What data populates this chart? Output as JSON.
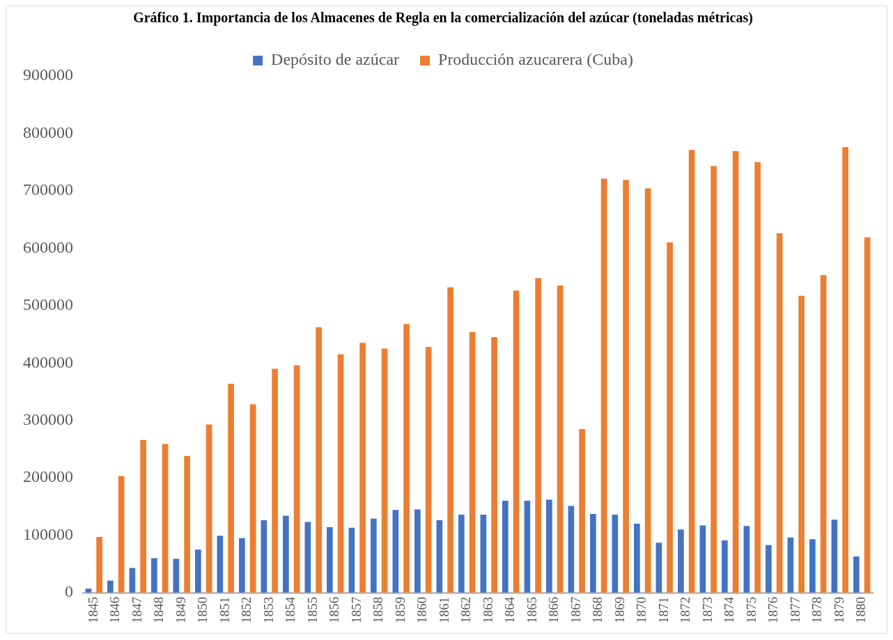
{
  "chart_data": {
    "type": "bar",
    "title": "Gráfico 1. Importancia de los Almacenes de Regla en la comercialización del azúcar (toneladas métricas)",
    "categories": [
      "1845",
      "1846",
      "1847",
      "1848",
      "1849",
      "1850",
      "1851",
      "1852",
      "1853",
      "1854",
      "1855",
      "1856",
      "1857",
      "1858",
      "1859",
      "1860",
      "1861",
      "1862",
      "1863",
      "1864",
      "1865",
      "1866",
      "1867",
      "1868",
      "1869",
      "1870",
      "1871",
      "1872",
      "1873",
      "1874",
      "1875",
      "1876",
      "1877",
      "1878",
      "1879",
      "1880"
    ],
    "series": [
      {
        "name": "Depósito de azúcar",
        "color": "#4472c4",
        "values": [
          7000,
          21000,
          43000,
          60000,
          59000,
          75000,
          99000,
          95000,
          126000,
          134000,
          123000,
          114000,
          113000,
          129000,
          144000,
          145000,
          126000,
          136000,
          136000,
          160000,
          160000,
          162000,
          151000,
          137000,
          136000,
          120000,
          87000,
          110000,
          117000,
          91000,
          116000,
          83000,
          96000,
          93000,
          127000,
          63000
        ]
      },
      {
        "name": "Producción azucarera (Cuba)",
        "color": "#ed7d31",
        "values": [
          97000,
          203000,
          266000,
          259000,
          238000,
          293000,
          364000,
          328000,
          390000,
          396000,
          462000,
          415000,
          435000,
          425000,
          468000,
          428000,
          532000,
          454000,
          445000,
          526000,
          548000,
          535000,
          285000,
          721000,
          719000,
          704000,
          610000,
          771000,
          743000,
          769000,
          750000,
          626000,
          517000,
          553000,
          776000,
          619000
        ]
      }
    ],
    "ylim": [
      0,
      900000
    ],
    "yticks": [
      0,
      100000,
      200000,
      300000,
      400000,
      500000,
      600000,
      700000,
      800000,
      900000
    ],
    "grid": false,
    "legend": "top"
  }
}
